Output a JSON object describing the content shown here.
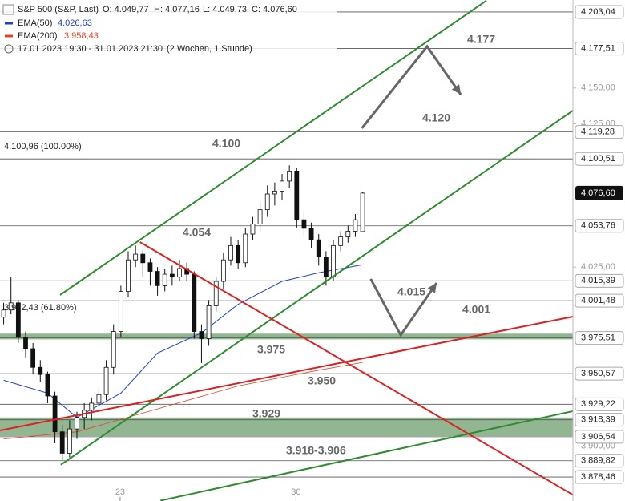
{
  "chart_data": {
    "type": "candlestick",
    "title": "S&P 500 (S&P, Last)",
    "ohlc_labels": [
      "O: 4.049,77",
      "H: 4.077,16",
      "L: 4.049,73",
      "C: 4.076,60"
    ],
    "period": "17.01.2023 19:30 - 31.01.2023 21:30",
    "period_note": "(2 Wochen, 1 Stunde)",
    "xlim": [
      -0.5,
      77.7
    ],
    "xticks": [
      {
        "value": 15.9,
        "label": "23"
      },
      {
        "value": 39.9,
        "label": "30"
      }
    ],
    "ylim": [
      3861.7,
      4211.4
    ],
    "yticks": [
      {
        "value": 4150,
        "label": "4.150,00"
      },
      {
        "value": 4125,
        "label": "4.125,00"
      },
      {
        "value": 4025,
        "label": "4.025,00"
      },
      {
        "value": 3900,
        "label": "3.900,00"
      }
    ],
    "levels": [
      {
        "value": 4203.04,
        "label": "4.203,04"
      },
      {
        "value": 4177.51,
        "label": "4.177,51"
      },
      {
        "value": 4119.28,
        "label": "4.119,28"
      },
      {
        "value": 4100.51,
        "label": "4.100,51"
      },
      {
        "value": 4053.76,
        "label": "4.053,76"
      },
      {
        "value": 4015.39,
        "label": "4.015,39"
      },
      {
        "value": 4001.48,
        "label": "4.001,48"
      },
      {
        "value": 3975.51,
        "label": "3.975,51"
      },
      {
        "value": 3950.57,
        "label": "3.950,57"
      },
      {
        "value": 3929.22,
        "label": "3.929,22"
      },
      {
        "value": 3918.39,
        "label": "3.918,39"
      },
      {
        "value": 3906.54,
        "label": "3.906,54"
      },
      {
        "value": 3889.82,
        "label": "3.889,82"
      },
      {
        "value": 3878.46,
        "label": "3.878,46"
      }
    ],
    "current": {
      "value": 4076.6,
      "label": "4.076,60"
    },
    "up_color": "#ffffff",
    "down_color": "#111111",
    "candles": [
      [
        3990,
        4000,
        3985,
        3995
      ],
      [
        3995,
        4018,
        3992,
        4000
      ],
      [
        4000,
        4002,
        3972,
        3976
      ],
      [
        3976,
        3980,
        3962,
        3968
      ],
      [
        3968,
        3972,
        3950,
        3955
      ],
      [
        3955,
        3960,
        3945,
        3950
      ],
      [
        3950,
        3952,
        3930,
        3935
      ],
      [
        3935,
        3938,
        3902,
        3910
      ],
      [
        3910,
        3915,
        3890,
        3895
      ],
      [
        3895,
        3918,
        3892,
        3912
      ],
      [
        3912,
        3924,
        3905,
        3920
      ],
      [
        3920,
        3930,
        3912,
        3925
      ],
      [
        3925,
        3934,
        3918,
        3930
      ],
      [
        3930,
        3940,
        3926,
        3936
      ],
      [
        3936,
        3960,
        3932,
        3955
      ],
      [
        3955,
        3985,
        3950,
        3980
      ],
      [
        3980,
        4012,
        3976,
        4008
      ],
      [
        4008,
        4036,
        4004,
        4030
      ],
      [
        4030,
        4040,
        4025,
        4034
      ],
      [
        4034,
        4037,
        4018,
        4028
      ],
      [
        4028,
        4031,
        4012,
        4022
      ],
      [
        4022,
        4025,
        4005,
        4012
      ],
      [
        4012,
        4024,
        4008,
        4020
      ],
      [
        4020,
        4026,
        4012,
        4018
      ],
      [
        4018,
        4030,
        4015,
        4024
      ],
      [
        4024,
        4028,
        4015,
        4020
      ],
      [
        4020,
        4022,
        3975,
        3980
      ],
      [
        3980,
        3985,
        3958,
        3975
      ],
      [
        3975,
        4002,
        3970,
        3998
      ],
      [
        3998,
        4018,
        3994,
        4015
      ],
      [
        4015,
        4035,
        4010,
        4030
      ],
      [
        4030,
        4046,
        4026,
        4040
      ],
      [
        4040,
        4044,
        4024,
        4028
      ],
      [
        4028,
        4052,
        4025,
        4048
      ],
      [
        4048,
        4060,
        4044,
        4055
      ],
      [
        4055,
        4070,
        4050,
        4065
      ],
      [
        4065,
        4082,
        4060,
        4076
      ],
      [
        4076,
        4084,
        4068,
        4078
      ],
      [
        4078,
        4090,
        4072,
        4085
      ],
      [
        4085,
        4096,
        4080,
        4092
      ],
      [
        4092,
        4094,
        4052,
        4058
      ],
      [
        4058,
        4064,
        4046,
        4052
      ],
      [
        4052,
        4056,
        4038,
        4044
      ],
      [
        4044,
        4048,
        4026,
        4032
      ],
      [
        4032,
        4036,
        4012,
        4018
      ],
      [
        4018,
        4044,
        4015,
        4040
      ],
      [
        4040,
        4050,
        4036,
        4046
      ],
      [
        4046,
        4054,
        4042,
        4050
      ],
      [
        4050,
        4062,
        4046,
        4058
      ],
      [
        4049.77,
        4077.16,
        4049.73,
        4076.6
      ]
    ],
    "series": [
      {
        "name": "EMA(50)",
        "color": "#1f3fcf",
        "x": [
          0,
          6,
          10,
          16,
          21,
          27,
          32,
          38,
          43,
          49
        ],
        "values": [
          3946,
          3937,
          3920,
          3937,
          3965,
          3979,
          3999,
          4015,
          4021,
          4026.63
        ],
        "value_labels": [
          null,
          null,
          null,
          null,
          null,
          null,
          null,
          null,
          null,
          "4.026,63"
        ]
      },
      {
        "name": "EMA(200)",
        "color": "#e0452a",
        "x": [
          0,
          10,
          21,
          32,
          43,
          49
        ],
        "values": [
          3905,
          3910,
          3926,
          3942,
          3953,
          3958.43
        ],
        "value_labels": [
          null,
          null,
          null,
          null,
          null,
          "3.958,43"
        ]
      }
    ],
    "zones": [
      [
        3974.5,
        3978.5
      ],
      [
        3907,
        3920
      ]
    ],
    "zone_color": "#7fa87f",
    "trendlines": [
      {
        "color": "#2e8b2e",
        "points": [
          [
            7.7,
            4005.5
          ],
          [
            65.9,
            4211
          ]
        ]
      },
      {
        "color": "#2e8b2e",
        "points": [
          [
            7.8,
            3887
          ],
          [
            77.7,
            4134.2
          ]
        ]
      },
      {
        "color": "#2e8b2e",
        "points": [
          [
            21.4,
            3862
          ],
          [
            77.7,
            3924.4
          ]
        ]
      },
      {
        "color": "#e02020",
        "points": [
          [
            -0.5,
            3910.9
          ],
          [
            77.7,
            3990.4
          ]
        ]
      },
      {
        "color": "#e02020",
        "points": [
          [
            18.6,
            4042.4
          ],
          [
            77.7,
            3866
          ]
        ]
      }
    ],
    "arrows": [
      {
        "color": "#666666",
        "points": [
          [
            48.9,
            4121.9
          ],
          [
            57.8,
            4179
          ],
          [
            62.4,
            4145.4
          ]
        ]
      },
      {
        "color": "#666666",
        "points": [
          [
            50.1,
            4016.7
          ],
          [
            54.2,
            3977.5
          ],
          [
            59.1,
            4013.9
          ]
        ]
      }
    ],
    "annotations": [
      "4.177",
      "4.120",
      "4.100",
      "4.054",
      "4.015",
      "4.001",
      "3.975",
      "3.950",
      "3.929",
      "3.918-3.906"
    ],
    "fib_labels": [
      "4.100,96 (100.00%)",
      "3.972,43 (61.80%)"
    ]
  }
}
